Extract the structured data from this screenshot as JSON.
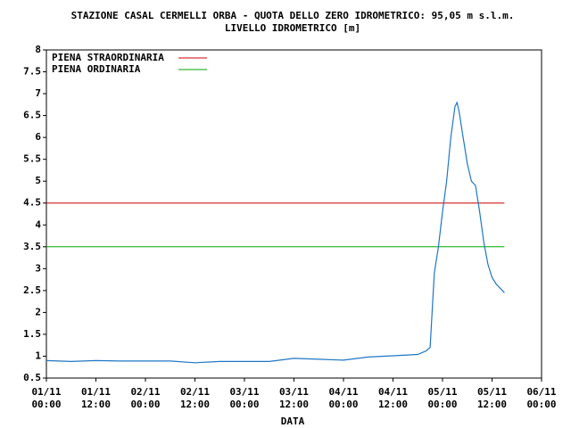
{
  "chart_data": {
    "type": "line",
    "title": "STAZIONE CASAL CERMELLI ORBA - QUOTA DELLO ZERO IDROMETRICO: 95,05 m s.l.m.",
    "subtitle": "LIVELLO IDROMETRICO [m]",
    "x_label": "DATA",
    "x": [
      "01/11 00:00",
      "01/11 06:00",
      "01/11 12:00",
      "01/11 18:00",
      "02/11 00:00",
      "02/11 06:00",
      "02/11 12:00",
      "02/11 18:00",
      "03/11 00:00",
      "03/11 06:00",
      "03/11 12:00",
      "03/11 18:00",
      "04/11 00:00",
      "04/11 06:00",
      "04/11 12:00",
      "04/11 18:00",
      "04/11 20:00",
      "04/11 21:00",
      "04/11 22:00",
      "04/11 23:00",
      "05/11 00:00",
      "05/11 01:00",
      "05/11 02:00",
      "05/11 03:00",
      "05/11 03:30",
      "05/11 04:00",
      "05/11 05:00",
      "05/11 06:00",
      "05/11 07:00",
      "05/11 08:00",
      "05/11 09:00",
      "05/11 10:00",
      "05/11 11:00",
      "05/11 12:00",
      "05/11 13:00",
      "05/11 14:00",
      "05/11 15:00"
    ],
    "series": [
      {
        "name": "LIVELLO",
        "color": "#1f77c4",
        "values": [
          0.9,
          0.88,
          0.9,
          0.89,
          0.89,
          0.89,
          0.85,
          0.88,
          0.88,
          0.88,
          0.95,
          0.93,
          0.91,
          0.98,
          1.01,
          1.04,
          1.12,
          1.2,
          2.9,
          3.5,
          4.3,
          5.0,
          6.0,
          6.7,
          6.8,
          6.6,
          6.0,
          5.4,
          5.0,
          4.9,
          4.3,
          3.6,
          3.1,
          2.8,
          2.65,
          2.55,
          2.45
        ]
      }
    ],
    "hlines": [
      {
        "name": "PIENA STRAORDINARIA",
        "color": "#cc0000",
        "value": 4.5
      },
      {
        "name": "PIENA ORDINARIA",
        "color": "#00aa00",
        "value": 3.5
      }
    ],
    "xlim": [
      {
        "date": "01/11",
        "time": "00:00"
      },
      {
        "date": "06/11",
        "time": "00:00"
      }
    ],
    "xticks": [
      {
        "date": "01/11",
        "time": "00:00"
      },
      {
        "date": "01/11",
        "time": "12:00"
      },
      {
        "date": "02/11",
        "time": "00:00"
      },
      {
        "date": "02/11",
        "time": "12:00"
      },
      {
        "date": "03/11",
        "time": "00:00"
      },
      {
        "date": "03/11",
        "time": "12:00"
      },
      {
        "date": "04/11",
        "time": "00:00"
      },
      {
        "date": "04/11",
        "time": "12:00"
      },
      {
        "date": "05/11",
        "time": "00:00"
      },
      {
        "date": "05/11",
        "time": "12:00"
      },
      {
        "date": "06/11",
        "time": "00:00"
      }
    ],
    "ylim": [
      0.5,
      8
    ],
    "yticks": [
      0.5,
      1,
      1.5,
      2,
      2.5,
      3,
      3.5,
      4,
      4.5,
      5,
      5.5,
      6,
      6.5,
      7,
      7.5,
      8
    ],
    "grid": false,
    "legend": "top-left"
  }
}
